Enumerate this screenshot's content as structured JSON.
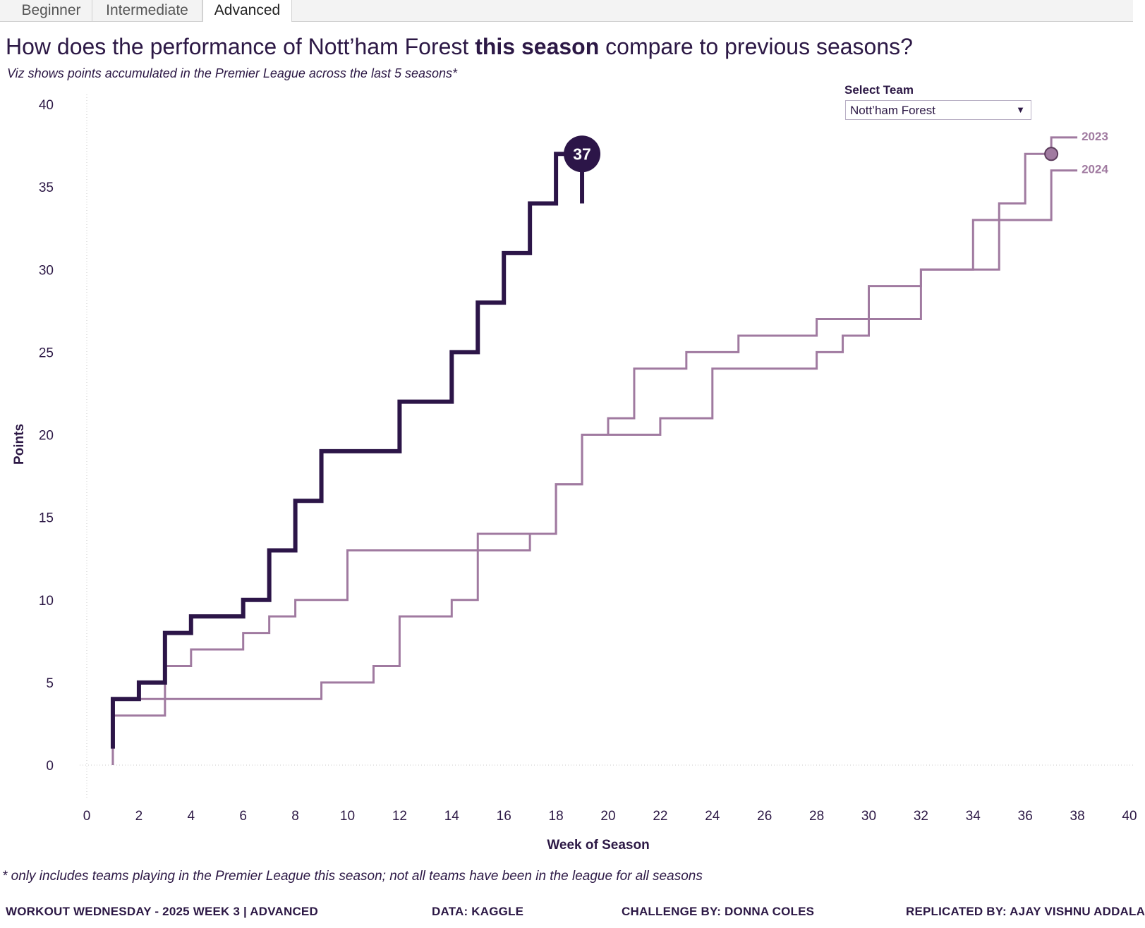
{
  "tabs": [
    "Beginner",
    "Intermediate",
    "Advanced"
  ],
  "active_tab": "Advanced",
  "title": {
    "part1": "How does the performance of Nott’ham Forest ",
    "bold": "this season",
    "part2": " compare to previous seasons?"
  },
  "subtitle": "Viz shows points accumulated in the Premier League across the last 5 seasons*",
  "filter": {
    "label": "Select Team",
    "value": "Nott’ham Forest"
  },
  "chart_data": {
    "type": "line",
    "step": true,
    "xlabel": "Week of Season",
    "ylabel": "Points",
    "xlim": [
      0,
      40
    ],
    "ylim": [
      0,
      40
    ],
    "xticks": [
      0,
      2,
      4,
      6,
      8,
      10,
      12,
      14,
      16,
      18,
      20,
      22,
      24,
      26,
      28,
      30,
      32,
      34,
      36,
      38,
      40
    ],
    "yticks": [
      0,
      5,
      10,
      15,
      20,
      25,
      30,
      35,
      40
    ],
    "series": [
      {
        "name": "",
        "current": true,
        "color": "#2c1548",
        "end_label": "37",
        "x": [
          1,
          2,
          3,
          4,
          5,
          6,
          7,
          8,
          9,
          10,
          11,
          12,
          13,
          14,
          15,
          16,
          17,
          18,
          19
        ],
        "y": [
          1,
          4,
          5,
          8,
          9,
          9,
          10,
          13,
          16,
          19,
          19,
          19,
          22,
          22,
          25,
          28,
          31,
          34,
          37
        ]
      },
      {
        "name": "2023",
        "current": false,
        "color": "#a07aa0",
        "x": [
          1,
          2,
          3,
          4,
          5,
          6,
          7,
          8,
          9,
          10,
          11,
          12,
          13,
          14,
          15,
          16,
          17,
          18,
          19,
          20,
          21,
          22,
          23,
          24,
          25,
          26,
          27,
          28,
          29,
          30,
          31,
          32,
          33,
          34,
          35,
          36,
          37,
          38
        ],
        "y": [
          0,
          3,
          3,
          6,
          7,
          7,
          8,
          9,
          10,
          10,
          13,
          13,
          13,
          13,
          13,
          13,
          13,
          14,
          17,
          20,
          21,
          24,
          24,
          25,
          25,
          26,
          26,
          26,
          27,
          27,
          27,
          27,
          30,
          30,
          30,
          34,
          37,
          38
        ]
      },
      {
        "name": "2024",
        "current": false,
        "color": "#a07aa0",
        "x": [
          1,
          2,
          3,
          4,
          5,
          6,
          7,
          8,
          9,
          10,
          11,
          12,
          13,
          14,
          15,
          16,
          17,
          18,
          19,
          20,
          21,
          22,
          23,
          24,
          25,
          26,
          27,
          28,
          29,
          30,
          31,
          32,
          33,
          34,
          35,
          36,
          37,
          38
        ],
        "y": [
          0,
          4,
          4,
          4,
          4,
          4,
          4,
          4,
          4,
          5,
          5,
          6,
          9,
          9,
          10,
          14,
          14,
          14,
          17,
          20,
          20,
          20,
          21,
          21,
          24,
          24,
          24,
          24,
          25,
          26,
          29,
          29,
          30,
          30,
          33,
          33,
          33,
          36
        ]
      }
    ],
    "marker": {
      "series": "2023",
      "x": 37,
      "y": 37
    }
  },
  "footnote": "* only includes teams playing in the Premier League  this season; not all teams have been in the league for all seasons",
  "credits": [
    "WORKOUT WEDNESDAY - 2025 WEEK 3 | ADVANCED",
    "DATA: KAGGLE",
    "CHALLENGE BY: DONNA COLES",
    "REPLICATED BY: AJAY VISHNU ADDALA"
  ]
}
